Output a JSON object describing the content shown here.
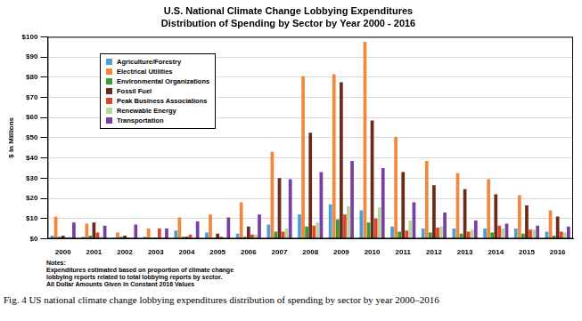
{
  "chart_data": {
    "type": "bar",
    "title": "U.S. National Climate Change Lobbying Expenditures",
    "subtitle": "Distribution of Spending by Sector by Year 2000 - 2016",
    "y_label": "$ In Millions",
    "annotations": [
      "Notes:",
      "Expenditures estimated based on proportion of climate change",
      "lobbying reports related to total lobbying reports by sector.",
      "All Dollar Amounts Given in Constant 2016 Values"
    ],
    "caption": "Fig. 4  US national climate change lobbying expenditures distribution of spending by sector by year 2000–2016",
    "categories": [
      "2000",
      "2001",
      "2002",
      "2003",
      "2004",
      "2005",
      "2006",
      "2007",
      "2008",
      "2009",
      "2010",
      "2011",
      "2012",
      "2013",
      "2014",
      "2015",
      "2016"
    ],
    "series": [
      {
        "name": "Agriculture/Forestry",
        "color": "#4e9fd6",
        "values": [
          1.5,
          1,
          0.5,
          1,
          4,
          3,
          2.5,
          7,
          12,
          17,
          14,
          6,
          5,
          5,
          5,
          5,
          3.5
        ]
      },
      {
        "name": "Electrical Utilities",
        "color": "#f0883e",
        "values": [
          11,
          7.5,
          3,
          5,
          10.5,
          12,
          18,
          43,
          80.5,
          81.5,
          97.5,
          50.5,
          38.5,
          32.5,
          29.5,
          21.5,
          14
        ]
      },
      {
        "name": "Environmental Organizations",
        "color": "#3a9a3a",
        "values": [
          1,
          1.5,
          1,
          0.5,
          1,
          0.5,
          1,
          3.5,
          6,
          9.5,
          8,
          3.5,
          3,
          2.5,
          3,
          2.5,
          1.5
        ]
      },
      {
        "name": "Fossil Fuel",
        "color": "#6b2d1a",
        "values": [
          1.5,
          8,
          1.5,
          0.5,
          1,
          2.5,
          6,
          30,
          52.5,
          77.5,
          58.5,
          33,
          26.5,
          24.5,
          22,
          16.5,
          11
        ]
      },
      {
        "name": "Peak Business Associations",
        "color": "#e0442c",
        "values": [
          0.5,
          3,
          0.5,
          5,
          2,
          1,
          2,
          3.5,
          6.5,
          12,
          10,
          4,
          5.5,
          3.5,
          6.5,
          4.5,
          3.5
        ]
      },
      {
        "name": "Renewable Energy",
        "color": "#b5d89a",
        "values": [
          1,
          1,
          0.5,
          0.5,
          0.5,
          0.5,
          2,
          5,
          8,
          16,
          15.5,
          9,
          6,
          4.5,
          5,
          4.5,
          3
        ]
      },
      {
        "name": "Transportation",
        "color": "#7b3fa3",
        "values": [
          8,
          6.5,
          7,
          5,
          8.5,
          10.5,
          12,
          29.5,
          33,
          38.5,
          35,
          18,
          13,
          9,
          7.5,
          6.5,
          6
        ]
      }
    ],
    "ylim": [
      0,
      100
    ],
    "yticks": [
      {
        "value": 0,
        "label": "$0"
      },
      {
        "value": 10,
        "label": "$10"
      },
      {
        "value": 20,
        "label": "$20"
      },
      {
        "value": 30,
        "label": "$30"
      },
      {
        "value": 40,
        "label": "$40"
      },
      {
        "value": 50,
        "label": "$50"
      },
      {
        "value": 60,
        "label": "$60"
      },
      {
        "value": 70,
        "label": "$70"
      },
      {
        "value": 80,
        "label": "$80"
      },
      {
        "value": 90,
        "label": "$90"
      },
      {
        "value": 100,
        "label": "$100"
      }
    ],
    "grid": true,
    "legend": "upper left"
  }
}
